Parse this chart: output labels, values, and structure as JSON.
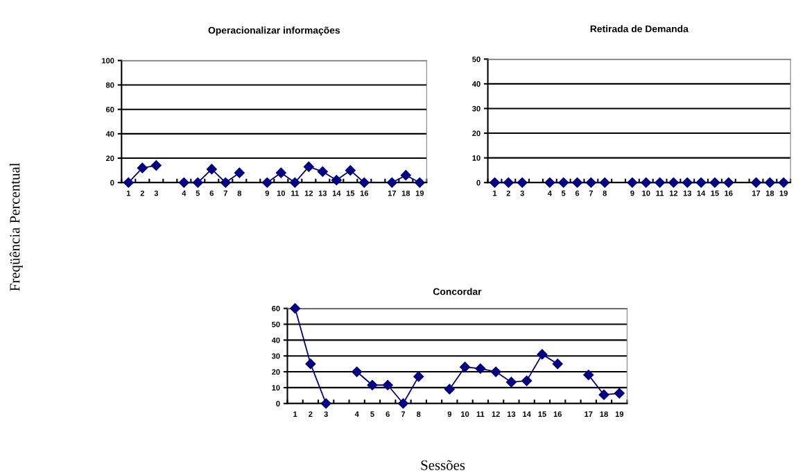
{
  "chart_data": [
    {
      "type": "line",
      "title": "Operacionalizar informações",
      "ylabel": "Freqüência Percentual",
      "categories": [
        "1",
        "2",
        "3",
        null,
        "4",
        "5",
        "6",
        "7",
        "8",
        null,
        "9",
        "10",
        "11",
        "12",
        "13",
        "14",
        "15",
        "16",
        null,
        "17",
        "18",
        "19"
      ],
      "series": [
        {
          "color": "#000080",
          "values": [
            0,
            12,
            14,
            null,
            0,
            0,
            11,
            0,
            8,
            null,
            0,
            8,
            0,
            13,
            9,
            2,
            10,
            0,
            null,
            0,
            6,
            0
          ]
        }
      ],
      "ylim": [
        0,
        100
      ],
      "yticks": [
        0,
        20,
        40,
        60,
        80,
        100
      ],
      "grid": "y",
      "marker": "diamond",
      "line_style": "solid"
    },
    {
      "type": "line",
      "title": "Retirada de Demanda",
      "categories": [
        "1",
        "2",
        "3",
        null,
        "4",
        "5",
        "6",
        "7",
        "8",
        null,
        "9",
        "10",
        "11",
        "12",
        "13",
        "14",
        "15",
        "16",
        null,
        "17",
        "18",
        "19"
      ],
      "series": [
        {
          "color": "#000080",
          "values": [
            0,
            0,
            0,
            null,
            0,
            0,
            0,
            0,
            0,
            null,
            0,
            0,
            0,
            0,
            0,
            0,
            0,
            0,
            null,
            0,
            0,
            0
          ]
        }
      ],
      "ylim": [
        0,
        50
      ],
      "yticks": [
        0,
        10,
        20,
        30,
        40,
        50
      ],
      "grid": "y",
      "marker": "diamond",
      "line_style": "solid"
    },
    {
      "type": "line",
      "title": "Concordar",
      "xlabel": "Sessões",
      "categories": [
        "1",
        "2",
        "3",
        null,
        "4",
        "5",
        "6",
        "7",
        "8",
        null,
        "9",
        "10",
        "11",
        "12",
        "13",
        "14",
        "15",
        "16",
        null,
        "17",
        "18",
        "19"
      ],
      "series": [
        {
          "color": "#000080",
          "values": [
            60,
            25,
            0,
            null,
            20,
            11.6,
            11.6,
            0,
            17,
            null,
            9,
            23,
            22,
            20,
            13.5,
            14.3,
            31,
            25,
            null,
            18,
            5.5,
            6.4
          ]
        }
      ],
      "ylim": [
        0,
        60
      ],
      "yticks": [
        0,
        10,
        20,
        30,
        40,
        50,
        60
      ],
      "grid": "y",
      "marker": "diamond",
      "line_style": "solid"
    }
  ]
}
